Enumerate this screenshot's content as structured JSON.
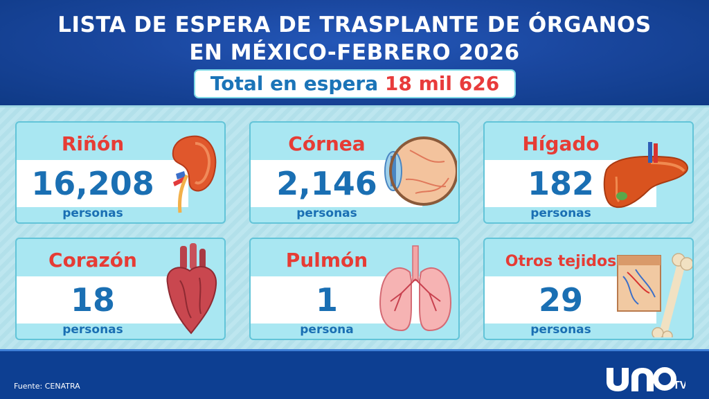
{
  "header": {
    "title_line1": "LISTA DE ESPERA DE TRASPLANTE DE ÓRGANOS",
    "title_line2": "EN MÉXICO-FEBRERO 2026",
    "total_label": "Total en espera",
    "total_value": "18 mil 626"
  },
  "cards": [
    {
      "name": "Riñón",
      "value": "16,208",
      "unit": "personas",
      "icon": "kidney-icon"
    },
    {
      "name": "Córnea",
      "value": "2,146",
      "unit": "personas",
      "icon": "eye-icon"
    },
    {
      "name": "Hígado",
      "value": "182",
      "unit": "personas",
      "icon": "liver-icon"
    },
    {
      "name": "Corazón",
      "value": "18",
      "unit": "personas",
      "icon": "heart-icon"
    },
    {
      "name": "Pulmón",
      "value": "1",
      "unit": "persona",
      "icon": "lungs-icon"
    },
    {
      "name": "Otros tejidos",
      "value": "29",
      "unit": "personas",
      "icon": "bone-tissue-icon"
    }
  ],
  "footer": {
    "source": "Fuente: CENATRA",
    "logo_text": "UNOTV"
  },
  "colors": {
    "header_blue": "#1a479f",
    "organ_name_red": "#e63c35",
    "value_blue": "#1a6fb3",
    "card_bg": "#a9e7f2",
    "total_red": "#e83b3b"
  }
}
